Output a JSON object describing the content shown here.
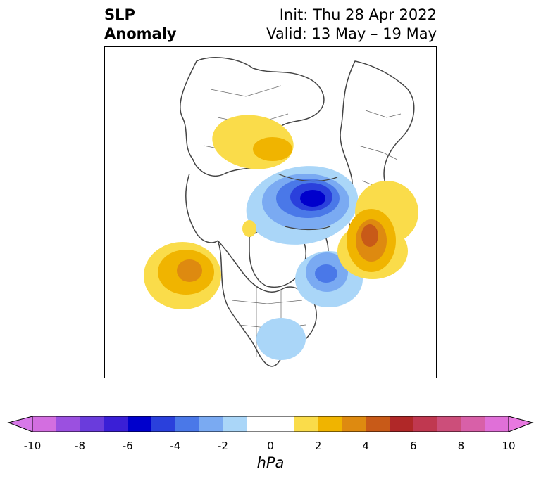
{
  "title": {
    "left_line1": "SLP",
    "left_line2": "Anomaly",
    "init": "Init: Thu 28 Apr 2022",
    "valid": "Valid: 13 May – 19 May"
  },
  "colorbar": {
    "unit": "hPa",
    "ticks": [
      "-10",
      "-8",
      "-6",
      "-4",
      "-2",
      "0",
      "2",
      "4",
      "6",
      "8",
      "10"
    ],
    "colors": [
      "#d36ee0",
      "#9b50e0",
      "#6a3cdc",
      "#3a1fd6",
      "#0000cc",
      "#2a40dc",
      "#4a78e8",
      "#7aaaf2",
      "#aad6f8",
      "#ffffff",
      "#ffffff",
      "#fadc4a",
      "#f0b400",
      "#de8a10",
      "#c85a18",
      "#b02828",
      "#c03850",
      "#cc4e7a",
      "#d860a8",
      "#e070d8"
    ],
    "extend_min_color": "#d778e8",
    "extend_max_color": "#e878e0"
  },
  "chart_data": {
    "type": "contour-map",
    "variable": "Sea level pressure anomaly",
    "unit": "hPa",
    "range": [
      -10,
      10
    ],
    "features": [
      {
        "label": "positive anomaly, Siberia",
        "peak": 3
      },
      {
        "label": "negative anomaly, Arctic / Kara Sea",
        "peak": -7
      },
      {
        "label": "positive anomaly, NE Pacific / Gulf of Alaska",
        "peak": 4
      },
      {
        "label": "positive anomaly, North Atlantic / W Europe",
        "peak": 5
      },
      {
        "label": "negative anomaly, Greenland / Canada",
        "peak": -4
      }
    ]
  }
}
